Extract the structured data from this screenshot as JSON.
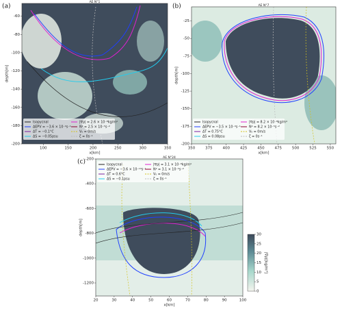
{
  "chart_data": [
    {
      "type": "heatmap",
      "label": "(a)",
      "title": "AE N°1",
      "xlabel": "x[km]",
      "ylabel": "depth[m]",
      "xlim": [
        57,
        350
      ],
      "xticks": [
        100,
        150,
        200,
        250,
        300,
        350
      ],
      "ylim": [
        -200,
        -46
      ],
      "yticks": [
        -60,
        -80,
        -100,
        -120,
        -140,
        -160,
        -180,
        -200
      ],
      "legend": [
        {
          "name": "Isopycnal",
          "color": "#222222",
          "style": "solid"
        },
        {
          "name": "ΔEPV = −3.6 × 10⁻⁹s⁻¹",
          "color": "#1f3fff",
          "style": "solid"
        },
        {
          "name": "ΔT = −0.1°C",
          "color": "#7a1fa0",
          "style": "solid"
        },
        {
          "name": "ΔS = −0.05psu",
          "color": "#22ccee",
          "style": "solid"
        },
        {
          "name": "|∇ρ| = 2.6 × 10⁻⁸kg/m⁴",
          "color": "#e020d0",
          "style": "solid"
        },
        {
          "name": "N² = 2.5 × 10⁻⁵s⁻²",
          "color": "#8b0030",
          "style": "solid"
        },
        {
          "name": "V₀ = 0m/s",
          "color": "#d4c21a",
          "style": "dashed"
        },
        {
          "name": "ζ = 0s⁻¹",
          "color": "#bbbbbb",
          "style": "dashed"
        }
      ]
    },
    {
      "type": "heatmap",
      "label": "(b)",
      "title": "AE N°7",
      "xlabel": "x[km]",
      "ylabel": "depth[m]",
      "xlim": [
        350,
        558
      ],
      "xticks": [
        350,
        375,
        400,
        425,
        450,
        475,
        500,
        525,
        550
      ],
      "ylim": [
        -200,
        -5
      ],
      "yticks": [
        -25,
        -50,
        -75,
        -100,
        -125,
        -150,
        -175,
        -200
      ],
      "legend": [
        {
          "name": "Isopycnal",
          "color": "#222222",
          "style": "solid"
        },
        {
          "name": "ΔEPV = −3.5 × 10⁻⁹s⁻¹",
          "color": "#1f3fff",
          "style": "solid"
        },
        {
          "name": "ΔT = 0.75°C",
          "color": "#7a1fa0",
          "style": "solid"
        },
        {
          "name": "ΔS = 0.08psu",
          "color": "#22ccee",
          "style": "solid"
        },
        {
          "name": "|∇ρ| = 8.2 × 10⁻⁸kg/m⁴",
          "color": "#e020d0",
          "style": "solid"
        },
        {
          "name": "N² = 8.2 × 10⁻⁵s⁻²",
          "color": "#8b0030",
          "style": "solid"
        },
        {
          "name": "V₀ = 0m/s",
          "color": "#d4c21a",
          "style": "dashed"
        },
        {
          "name": "ζ = 0s⁻¹",
          "color": "#bbbbbb",
          "style": "dashed"
        }
      ]
    },
    {
      "type": "heatmap",
      "label": "(c)",
      "title": "AE N°24",
      "xlabel": "x[km]",
      "ylabel": "depth[m]",
      "xlim": [
        20,
        100
      ],
      "xticks": [
        20,
        30,
        40,
        50,
        60,
        70,
        80,
        90,
        100
      ],
      "ylim": [
        -1305,
        -200
      ],
      "yticks": [
        -200,
        -400,
        -600,
        -800,
        -1000,
        -1200
      ],
      "legend": [
        {
          "name": "Isopycnal",
          "color": "#222222",
          "style": "solid"
        },
        {
          "name": "ΔEPV = −3.6 × 10⁻¹⁰s⁻¹",
          "color": "#1f3fff",
          "style": "solid"
        },
        {
          "name": "ΔT = 0.6°C",
          "color": "#7a1fa0",
          "style": "solid"
        },
        {
          "name": "ΔS = −0.1psu",
          "color": "#22ccee",
          "style": "solid"
        },
        {
          "name": "|∇ρ| = 3.1 × 10⁻⁸kg/m⁴",
          "color": "#e020d0",
          "style": "solid"
        },
        {
          "name": "N² = 3.1 × 10⁻⁵s⁻²",
          "color": "#8b0030",
          "style": "solid"
        },
        {
          "name": "V₀ = 0m/s",
          "color": "#d4c21a",
          "style": "dashed"
        },
        {
          "name": "ζ = 0s⁻¹",
          "color": "#bbbbbb",
          "style": "dashed"
        }
      ],
      "colorbar": {
        "label": "|∇ρ|[kg/m⁴]",
        "lim": [
          0,
          30
        ],
        "ticks": [
          0,
          5,
          10,
          15,
          20,
          25,
          30
        ]
      }
    }
  ]
}
